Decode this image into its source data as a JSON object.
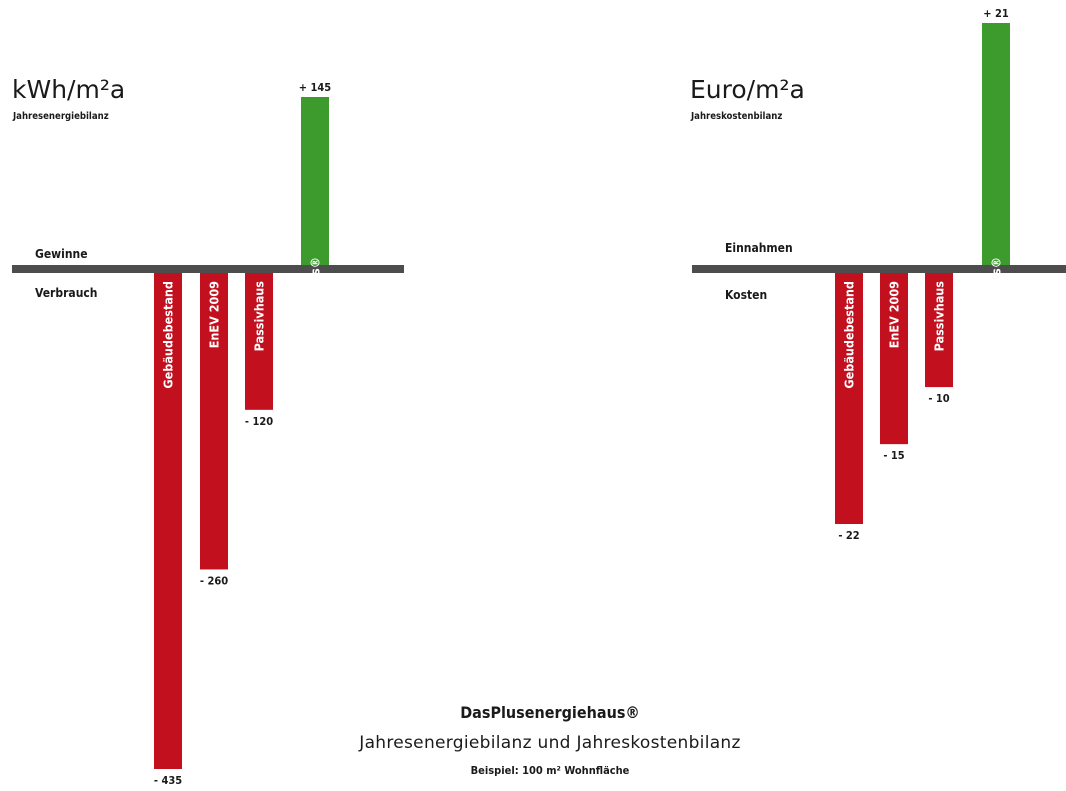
{
  "chart_data": [
    {
      "type": "bar",
      "title": "kWh/m²a",
      "subtitle": "Jahresenergiebilanz",
      "positive_label": "Gewinne",
      "negative_label": "Verbrauch",
      "categories": [
        "Gebäudebestand",
        "EnEV 2009",
        "Passivhaus",
        "Plusenergiehaus®"
      ],
      "values": [
        -435,
        -260,
        -120,
        145
      ],
      "value_labels": [
        "- 435",
        "- 260",
        "- 120",
        "+ 145"
      ],
      "ylim": [
        -435,
        145
      ],
      "grid": false,
      "colors": {
        "negative": "#c3101f",
        "positive": "#3d9a2c",
        "axis": "#4d4d4d"
      }
    },
    {
      "type": "bar",
      "title": "Euro/m²a",
      "subtitle": "Jahreskostenbilanz",
      "positive_label": "Einnahmen",
      "negative_label": "Kosten",
      "categories": [
        "Gebäudebestand",
        "EnEV 2009",
        "Passivhaus",
        "Plusenergiehaus®"
      ],
      "values": [
        -22,
        -15,
        -10,
        21
      ],
      "value_labels": [
        "- 22",
        "- 15",
        "- 10",
        "+ 21"
      ],
      "ylim": [
        -22,
        21
      ],
      "grid": false,
      "colors": {
        "negative": "#c3101f",
        "positive": "#3d9a2c",
        "axis": "#4d4d4d"
      }
    }
  ],
  "caption": {
    "title": "DasPlusenergiehaus®",
    "subtitle": "Jahresenergiebilanz und Jahreskostenbilanz",
    "note": "Beispiel:  100 m² Wohnfläche"
  }
}
